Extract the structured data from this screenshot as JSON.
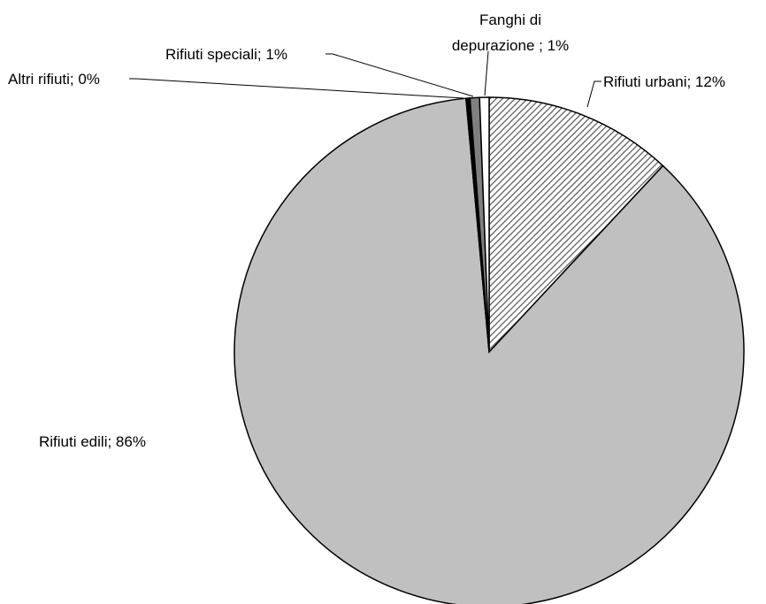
{
  "chart_data": {
    "type": "pie",
    "title": "",
    "slices": [
      {
        "category": "Rifiuti urbani",
        "value": 12,
        "label": "Rifiuti urbani; 12%",
        "fill": "hatch"
      },
      {
        "category": "Rifiuti edili",
        "value": 86,
        "label": "Rifiuti edili; 86%",
        "fill": "#c0c0c0"
      },
      {
        "category": "Altri rifiuti",
        "value": 0,
        "label": "Altri rifiuti; 0%",
        "fill": "#000000"
      },
      {
        "category": "Rifiuti speciali",
        "value": 1,
        "label": "Rifiuti speciali; 1%",
        "fill": "#808080"
      },
      {
        "category": "Fanghi di depurazione",
        "value": 1,
        "label_lines": [
          "Fanghi di",
          "depurazione ; 1%"
        ],
        "fill": "#ffffff"
      }
    ],
    "colors": {
      "hatch_fg": "#555555",
      "hatch_bg": "#ffffff",
      "outline": "#000000"
    }
  }
}
